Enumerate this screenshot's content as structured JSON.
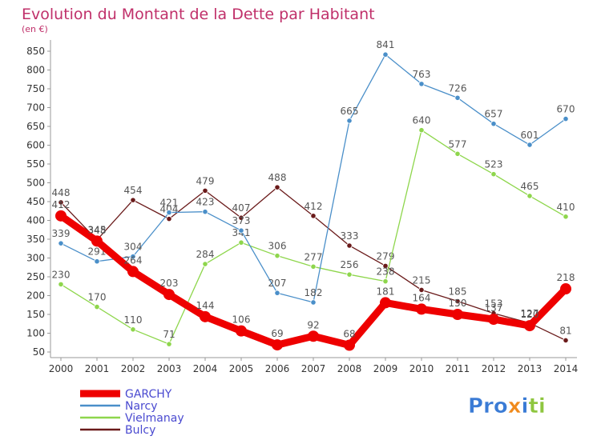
{
  "chart_data": {
    "type": "line",
    "title": "Evolution du Montant de la Dette par Habitant",
    "subtitle": "(en €)",
    "xlabel": "",
    "ylabel": "",
    "x": [
      "2000",
      "2001",
      "2002",
      "2003",
      "2004",
      "2005",
      "2006",
      "2007",
      "2008",
      "2009",
      "2010",
      "2011",
      "2012",
      "2013",
      "2014"
    ],
    "ylim": [
      50,
      850
    ],
    "yticks": [
      50,
      100,
      150,
      200,
      250,
      300,
      350,
      400,
      450,
      500,
      550,
      600,
      650,
      700,
      750,
      800,
      850
    ],
    "grid": false,
    "legend_position": "bottom-left",
    "series": [
      {
        "name": "GARCHY",
        "color": "#ee0000",
        "values": [
          412,
          345,
          264,
          203,
          144,
          106,
          69,
          92,
          68,
          181,
          164,
          150,
          137,
          120,
          218
        ]
      },
      {
        "name": "Narcy",
        "color": "#4a8fc9",
        "values": [
          339,
          291,
          304,
          421,
          423,
          373,
          207,
          182,
          665,
          841,
          763,
          726,
          657,
          601,
          670
        ]
      },
      {
        "name": "Vielmanay",
        "color": "#8ed64c",
        "values": [
          230,
          170,
          110,
          71,
          284,
          341,
          306,
          277,
          256,
          238,
          640,
          577,
          523,
          465,
          410
        ]
      },
      {
        "name": "Bulcy",
        "color": "#6a1a1a",
        "values": [
          448,
          348,
          454,
          404,
          479,
          407,
          488,
          412,
          333,
          279,
          215,
          185,
          153,
          127,
          81
        ]
      }
    ]
  },
  "branding": {
    "logo_text": "Proxiti"
  }
}
